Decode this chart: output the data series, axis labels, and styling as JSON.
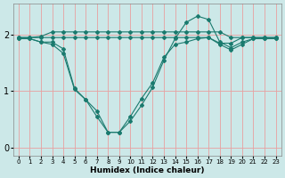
{
  "xlabel": "Humidex (Indice chaleur)",
  "bg_color": "#cce8e8",
  "line_color": "#1a7a6e",
  "grid_color": "#e8a0a0",
  "xlim": [
    -0.5,
    23.5
  ],
  "ylim": [
    -0.15,
    2.55
  ],
  "yticks": [
    0,
    1,
    2
  ],
  "xticks": [
    0,
    1,
    2,
    3,
    4,
    5,
    6,
    7,
    8,
    9,
    10,
    11,
    12,
    13,
    14,
    15,
    16,
    17,
    18,
    19,
    20,
    21,
    22,
    23
  ],
  "series": [
    [
      1.95,
      1.95,
      1.97,
      2.05,
      2.05,
      2.05,
      2.05,
      2.05,
      2.05,
      2.05,
      2.05,
      2.05,
      2.05,
      2.05,
      2.05,
      2.05,
      2.05,
      2.05,
      2.05,
      1.95,
      1.95,
      1.95,
      1.95,
      1.95
    ],
    [
      1.95,
      1.95,
      1.95,
      1.95,
      1.95,
      1.95,
      1.95,
      1.95,
      1.95,
      1.95,
      1.95,
      1.95,
      1.95,
      1.95,
      1.95,
      1.95,
      1.95,
      1.95,
      1.85,
      1.85,
      1.95,
      1.95,
      1.95,
      1.95
    ],
    [
      1.93,
      1.93,
      1.87,
      1.83,
      1.67,
      1.03,
      0.85,
      0.55,
      0.27,
      0.27,
      0.55,
      0.87,
      1.15,
      1.6,
      1.83,
      1.87,
      1.93,
      1.95,
      1.83,
      1.73,
      1.83,
      1.93,
      1.93,
      1.93
    ],
    [
      1.93,
      1.93,
      1.87,
      1.87,
      1.75,
      1.05,
      0.85,
      0.65,
      0.27,
      0.27,
      0.47,
      0.75,
      1.07,
      1.55,
      1.93,
      2.22,
      2.33,
      2.27,
      1.87,
      1.77,
      1.87,
      1.93,
      1.93,
      1.93
    ]
  ]
}
